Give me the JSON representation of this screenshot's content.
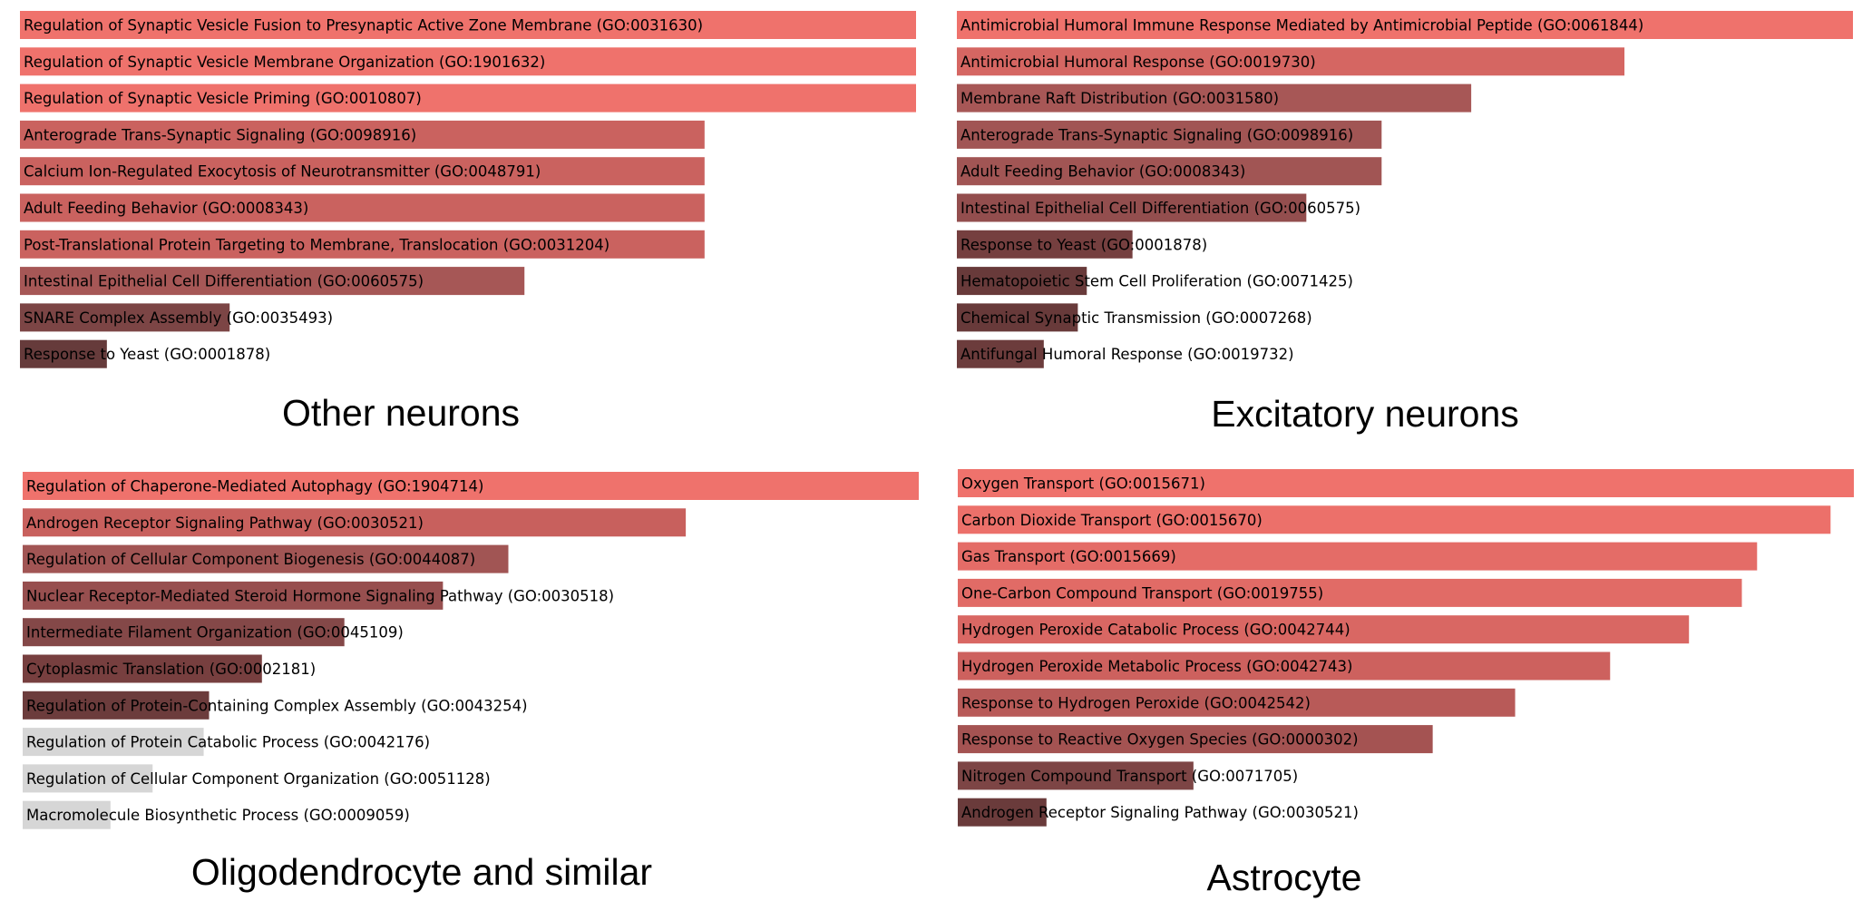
{
  "chart_data": [
    {
      "type": "bar",
      "orientation": "horizontal",
      "title": "Other neurons",
      "xlabel": "",
      "ylabel": "",
      "xlim": [
        0,
        1
      ],
      "categories": [
        "Regulation of Synaptic Vesicle Fusion to Presynaptic Active Zone Membrane (GO:0031630)",
        "Regulation of Synaptic Vesicle Membrane Organization (GO:1901632)",
        "Regulation of Synaptic Vesicle Priming (GO:0010807)",
        "Anterograde Trans-Synaptic Signaling (GO:0098916)",
        "Calcium Ion-Regulated Exocytosis of Neurotransmitter (GO:0048791)",
        "Adult Feeding Behavior (GO:0008343)",
        "Post-Translational Protein Targeting to Membrane, Translocation (GO:0031204)",
        "Intestinal Epithelial Cell Differentiation (GO:0060575)",
        "SNARE Complex Assembly (GO:0035493)",
        "Response to Yeast (GO:0001878)"
      ],
      "values": [
        1.0,
        1.0,
        1.0,
        0.764,
        0.764,
        0.764,
        0.764,
        0.563,
        0.234,
        0.097
      ],
      "colors": [
        "#ef726c",
        "#ef726c",
        "#ef726c",
        "#ca625f",
        "#ca625f",
        "#ca625f",
        "#ca625f",
        "#a65756",
        "#7c4545",
        "#663b3b"
      ]
    },
    {
      "type": "bar",
      "orientation": "horizontal",
      "title": "Excitatory neurons",
      "xlabel": "",
      "ylabel": "",
      "xlim": [
        0,
        1
      ],
      "categories": [
        "Antimicrobial Humoral Immune Response Mediated by Antimicrobial Peptide (GO:0061844)",
        "Antimicrobial Humoral Response (GO:0019730)",
        "Membrane Raft Distribution (GO:0031580)",
        "Anterograde Trans-Synaptic Signaling (GO:0098916)",
        "Adult Feeding Behavior (GO:0008343)",
        "Intestinal Epithelial Cell Differentiation (GO:0060575)",
        "Response to Yeast (GO:0001878)",
        "Hematopoietic Stem Cell Proliferation (GO:0071425)",
        "Chemical Synaptic Transmission (GO:0007268)",
        "Antifungal Humoral Response (GO:0019732)"
      ],
      "values": [
        1.0,
        0.745,
        0.574,
        0.474,
        0.474,
        0.39,
        0.196,
        0.145,
        0.135,
        0.097
      ],
      "colors": [
        "#ef726c",
        "#d56662",
        "#a75756",
        "#a15554",
        "#a15554",
        "#934e4e",
        "#753f3f",
        "#683a3a",
        "#683a3a",
        "#6c3c3c"
      ]
    },
    {
      "type": "bar",
      "orientation": "horizontal",
      "title": "Oligodendrocyte and similar",
      "xlabel": "",
      "ylabel": "",
      "xlim": [
        0,
        1
      ],
      "categories": [
        "Regulation of Chaperone-Mediated Autophagy (GO:1904714)",
        "Androgen Receptor Signaling Pathway (GO:0030521)",
        "Regulation of Cellular Component Biogenesis (GO:0044087)",
        "Nuclear Receptor-Mediated Steroid Hormone Signaling Pathway (GO:0030518)",
        "Intermediate Filament Organization (GO:0045109)",
        "Cytoplasmic Translation (GO:0002181)",
        "Regulation of Protein-Containing Complex Assembly (GO:0043254)",
        "Regulation of Protein Catabolic Process (GO:0042176)",
        "Regulation of Cellular Component Organization (GO:0051128)",
        "Macromolecule Biosynthetic Process (GO:0009059)"
      ],
      "values": [
        1.0,
        0.74,
        0.542,
        0.469,
        0.359,
        0.267,
        0.208,
        0.202,
        0.145,
        0.098
      ],
      "colors": [
        "#ef726c",
        "#c8605d",
        "#a15554",
        "#974f4f",
        "#844848",
        "#773f3f",
        "#6c3c3c",
        "#d6d6d6",
        "#d6d6d6",
        "#d6d6d6"
      ]
    },
    {
      "type": "bar",
      "orientation": "horizontal",
      "title": "Astrocyte",
      "xlabel": "",
      "ylabel": "",
      "xlim": [
        0,
        1
      ],
      "categories": [
        "Oxygen Transport (GO:0015671)",
        "Carbon Dioxide Transport (GO:0015670)",
        "Gas Transport (GO:0015669)",
        "One-Carbon Compound Transport (GO:0019755)",
        "Hydrogen Peroxide Catabolic Process (GO:0042744)",
        "Hydrogen Peroxide Metabolic Process (GO:0042743)",
        "Response to Hydrogen Peroxide (GO:0042542)",
        "Response to Reactive Oxygen Species (GO:0000302)",
        "Nitrogen Compound Transport (GO:0071705)",
        "Androgen Receptor Signaling Pathway (GO:0030521)"
      ],
      "values": [
        1.0,
        0.974,
        0.892,
        0.875,
        0.816,
        0.728,
        0.622,
        0.53,
        0.263,
        0.099
      ],
      "colors": [
        "#ef726c",
        "#ec706a",
        "#e46c67",
        "#e16b66",
        "#d96763",
        "#cd615e",
        "#b85a58",
        "#a45352",
        "#7d4545",
        "#6a3b3b"
      ]
    }
  ]
}
